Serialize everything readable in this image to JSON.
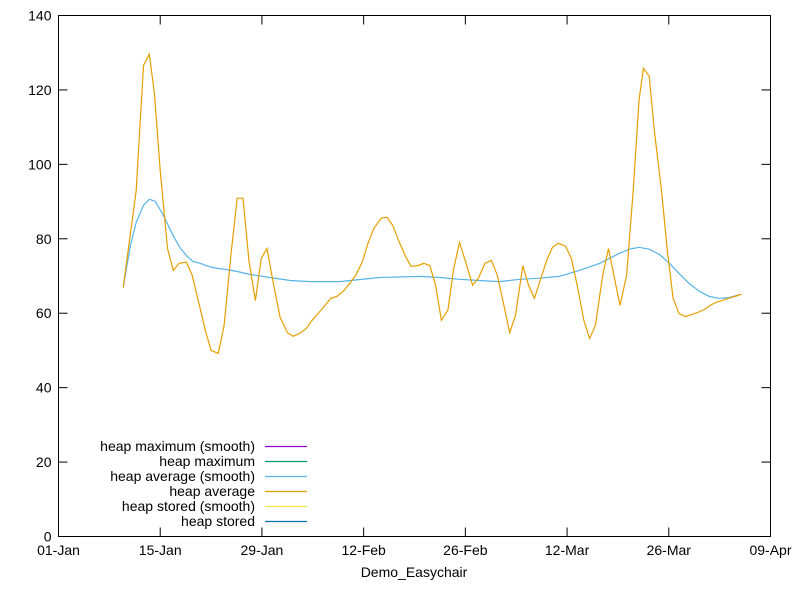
{
  "chart_data": {
    "type": "line",
    "title": "",
    "xlabel": "Demo_Easychair",
    "ylabel": "",
    "x_unit": "days since 01-Jan",
    "xlim": [
      0,
      98
    ],
    "ylim": [
      0,
      140
    ],
    "x_ticks": [
      {
        "day": 0,
        "label": "01-Jan"
      },
      {
        "day": 14,
        "label": "15-Jan"
      },
      {
        "day": 28,
        "label": "29-Jan"
      },
      {
        "day": 42,
        "label": "12-Feb"
      },
      {
        "day": 56,
        "label": "26-Feb"
      },
      {
        "day": 70,
        "label": "12-Mar"
      },
      {
        "day": 84,
        "label": "26-Mar"
      },
      {
        "day": 98,
        "label": "09-Apr"
      }
    ],
    "y_ticks": [
      0,
      20,
      40,
      60,
      80,
      100,
      120,
      140
    ],
    "grid": false,
    "legend_position": "bottom-left",
    "series": [
      {
        "name": "heap maximum (smooth)",
        "color": "#9400d3",
        "points": []
      },
      {
        "name": "heap maximum",
        "color": "#009e73",
        "points": []
      },
      {
        "name": "heap average (smooth)",
        "color": "#56b4e9",
        "points": [
          [
            8.9,
            66.9
          ],
          [
            9.9,
            78.2
          ],
          [
            10.7,
            84.4
          ],
          [
            11.7,
            89.0
          ],
          [
            12.5,
            90.6
          ],
          [
            13.3,
            90.1
          ],
          [
            14.3,
            86.8
          ],
          [
            15.1,
            83.6
          ],
          [
            15.9,
            80.4
          ],
          [
            16.8,
            77.4
          ],
          [
            17.7,
            75.3
          ],
          [
            18.5,
            73.9
          ],
          [
            19.5,
            73.4
          ],
          [
            20.3,
            72.8
          ],
          [
            21.2,
            72.3
          ],
          [
            22.1,
            72.0
          ],
          [
            22.9,
            71.8
          ],
          [
            23.8,
            71.5
          ],
          [
            24.6,
            71.2
          ],
          [
            26.4,
            70.4
          ],
          [
            29.1,
            69.6
          ],
          [
            31.9,
            68.8
          ],
          [
            34.6,
            68.5
          ],
          [
            38.7,
            68.5
          ],
          [
            44.2,
            69.6
          ],
          [
            49.7,
            69.9
          ],
          [
            52.5,
            69.6
          ],
          [
            55.2,
            69.1
          ],
          [
            57.9,
            68.8
          ],
          [
            60.7,
            68.5
          ],
          [
            63.5,
            69.1
          ],
          [
            66.2,
            69.4
          ],
          [
            68.9,
            69.9
          ],
          [
            71.7,
            71.5
          ],
          [
            74.5,
            73.4
          ],
          [
            77.2,
            76.1
          ],
          [
            78.6,
            77.2
          ],
          [
            79.9,
            77.7
          ],
          [
            81.3,
            77.2
          ],
          [
            82.7,
            75.8
          ],
          [
            84.1,
            73.4
          ],
          [
            85.4,
            70.7
          ],
          [
            86.8,
            68.0
          ],
          [
            88.2,
            65.9
          ],
          [
            89.6,
            64.5
          ],
          [
            90.9,
            64.0
          ],
          [
            92.3,
            64.2
          ],
          [
            94.0,
            65.1
          ]
        ]
      },
      {
        "name": "heap average",
        "color": "#e69f00",
        "points": [
          [
            8.9,
            66.9
          ],
          [
            10.7,
            93.0
          ],
          [
            11.7,
            126.6
          ],
          [
            12.5,
            129.6
          ],
          [
            13.2,
            119.1
          ],
          [
            14.0,
            98.4
          ],
          [
            15.0,
            77.4
          ],
          [
            15.8,
            71.5
          ],
          [
            16.6,
            73.4
          ],
          [
            17.6,
            73.7
          ],
          [
            18.4,
            70.2
          ],
          [
            19.4,
            62.1
          ],
          [
            20.2,
            55.4
          ],
          [
            21.0,
            50.0
          ],
          [
            22.0,
            49.2
          ],
          [
            22.8,
            56.7
          ],
          [
            23.8,
            76.9
          ],
          [
            24.6,
            90.9
          ],
          [
            25.4,
            90.9
          ],
          [
            26.2,
            74.2
          ],
          [
            27.1,
            63.4
          ],
          [
            27.9,
            74.7
          ],
          [
            28.7,
            77.4
          ],
          [
            29.5,
            68.8
          ],
          [
            30.5,
            58.9
          ],
          [
            31.5,
            54.8
          ],
          [
            32.3,
            53.8
          ],
          [
            33.2,
            54.6
          ],
          [
            34.1,
            55.9
          ],
          [
            34.9,
            58.1
          ],
          [
            35.7,
            59.9
          ],
          [
            36.7,
            62.1
          ],
          [
            37.5,
            64.0
          ],
          [
            38.3,
            64.5
          ],
          [
            39.3,
            66.1
          ],
          [
            40.1,
            68.0
          ],
          [
            40.9,
            70.2
          ],
          [
            41.8,
            73.7
          ],
          [
            42.6,
            78.8
          ],
          [
            43.4,
            82.8
          ],
          [
            44.4,
            85.5
          ],
          [
            45.2,
            85.8
          ],
          [
            46.0,
            83.6
          ],
          [
            46.8,
            79.6
          ],
          [
            47.7,
            75.5
          ],
          [
            48.5,
            72.6
          ],
          [
            49.5,
            72.8
          ],
          [
            50.3,
            73.4
          ],
          [
            51.1,
            72.8
          ],
          [
            51.9,
            67.5
          ],
          [
            52.7,
            58.1
          ],
          [
            53.6,
            60.8
          ],
          [
            54.4,
            72.0
          ],
          [
            55.2,
            79.0
          ],
          [
            56.2,
            72.8
          ],
          [
            57.0,
            67.5
          ],
          [
            57.8,
            69.4
          ],
          [
            58.7,
            73.4
          ],
          [
            59.6,
            74.2
          ],
          [
            60.4,
            70.2
          ],
          [
            61.3,
            62.1
          ],
          [
            62.1,
            54.8
          ],
          [
            62.9,
            59.4
          ],
          [
            63.9,
            72.8
          ],
          [
            64.7,
            67.5
          ],
          [
            65.5,
            64.0
          ],
          [
            66.3,
            68.8
          ],
          [
            67.2,
            74.2
          ],
          [
            68.0,
            77.7
          ],
          [
            68.8,
            78.8
          ],
          [
            69.8,
            78.0
          ],
          [
            70.6,
            74.7
          ],
          [
            71.4,
            67.5
          ],
          [
            72.3,
            58.1
          ],
          [
            73.1,
            53.2
          ],
          [
            73.9,
            56.7
          ],
          [
            74.9,
            70.2
          ],
          [
            75.7,
            77.4
          ],
          [
            76.5,
            69.6
          ],
          [
            77.3,
            62.1
          ],
          [
            78.2,
            70.2
          ],
          [
            79.1,
            93.0
          ],
          [
            79.9,
            117.2
          ],
          [
            80.5,
            125.8
          ],
          [
            81.3,
            123.7
          ],
          [
            82.0,
            109.1
          ],
          [
            83.0,
            93.0
          ],
          [
            83.8,
            76.9
          ],
          [
            84.6,
            64.0
          ],
          [
            85.4,
            59.9
          ],
          [
            86.3,
            59.1
          ],
          [
            87.2,
            59.7
          ],
          [
            88.0,
            60.2
          ],
          [
            88.9,
            61.0
          ],
          [
            89.7,
            62.1
          ],
          [
            90.5,
            62.9
          ],
          [
            91.3,
            63.4
          ],
          [
            92.2,
            64.0
          ],
          [
            93.1,
            64.5
          ],
          [
            94.0,
            65.1
          ]
        ]
      },
      {
        "name": "heap stored (smooth)",
        "color": "#f0e442",
        "points": []
      },
      {
        "name": "heap stored",
        "color": "#0072b2",
        "points": []
      }
    ]
  }
}
